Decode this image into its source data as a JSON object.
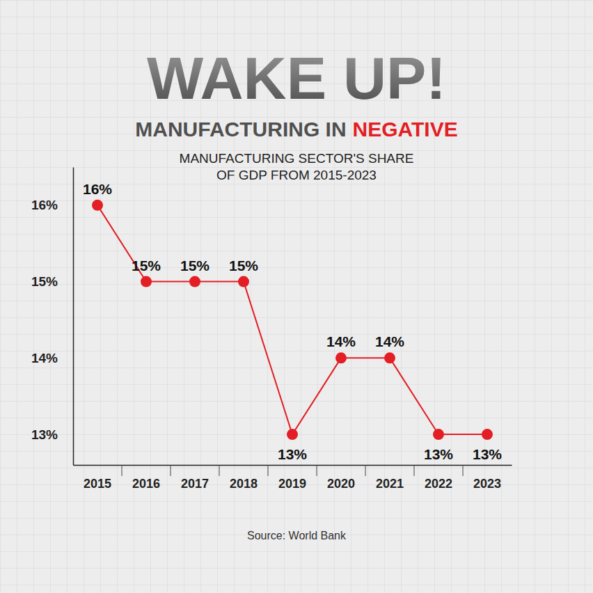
{
  "chart_data": {
    "type": "line",
    "title": "WAKE UP!",
    "headline": {
      "text": "MANUFACTURING IN",
      "highlight": "NEGATIVE"
    },
    "subtitle": [
      "MANUFACTURING SECTOR'S SHARE",
      "OF GDP FROM 2015-2023"
    ],
    "source": "Source: World Bank",
    "categories": [
      "2015",
      "2016",
      "2017",
      "2018",
      "2019",
      "2020",
      "2021",
      "2022",
      "2023"
    ],
    "values": [
      16,
      15,
      15,
      15,
      13,
      14,
      14,
      13,
      13
    ],
    "value_labels": [
      "16%",
      "15%",
      "15%",
      "15%",
      "13%",
      "14%",
      "14%",
      "13%",
      "13%"
    ],
    "color": "#e31e24",
    "marker": "circle",
    "line_style": "solid",
    "data_labels": true,
    "grid": false,
    "ylim": [
      12.6,
      16.5
    ],
    "yticks": [
      {
        "value": 13,
        "label": "13%"
      },
      {
        "value": 14,
        "label": "14%"
      },
      {
        "value": 15,
        "label": "15%"
      },
      {
        "value": 16,
        "label": "16%"
      }
    ]
  }
}
